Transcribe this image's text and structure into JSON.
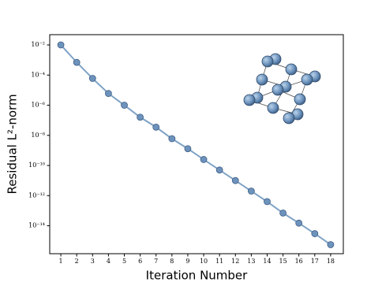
{
  "chart_data": {
    "type": "line",
    "xlabel": "Iteration Number",
    "ylabel": "Residual L²-norm",
    "x": [
      1,
      2,
      3,
      4,
      5,
      6,
      7,
      8,
      9,
      10,
      11,
      12,
      13,
      14,
      15,
      16,
      17,
      18
    ],
    "values": [
      0.01,
      0.0007,
      6e-05,
      6e-06,
      1e-06,
      1.6e-07,
      3.5e-08,
      6e-09,
      1.3e-09,
      2.5e-10,
      5e-11,
      1e-11,
      2e-12,
      4e-13,
      7e-14,
      1.5e-14,
      3e-15,
      5.6e-16
    ],
    "color": "#7fa3c6",
    "marker_color": "#6d93bd",
    "log_y": true,
    "xlim": [
      0.3,
      18.8
    ],
    "ylim": [
      1.4e-16,
      0.048
    ],
    "xticks": [
      1,
      2,
      3,
      4,
      5,
      6,
      7,
      8,
      9,
      10,
      11,
      12,
      13,
      14,
      15,
      16,
      17,
      18
    ],
    "yticks": [
      {
        "value": 0.01,
        "label": "10⁻²"
      },
      {
        "value": 0.0001,
        "label": "10⁻⁴"
      },
      {
        "value": 1e-06,
        "label": "10⁻⁶"
      },
      {
        "value": 1e-08,
        "label": "10⁻⁸"
      },
      {
        "value": 1e-10,
        "label": "10⁻¹⁰"
      },
      {
        "value": 1e-12,
        "label": "10⁻¹²"
      },
      {
        "value": 1e-14,
        "label": "10⁻¹⁴"
      }
    ],
    "grid": false
  }
}
